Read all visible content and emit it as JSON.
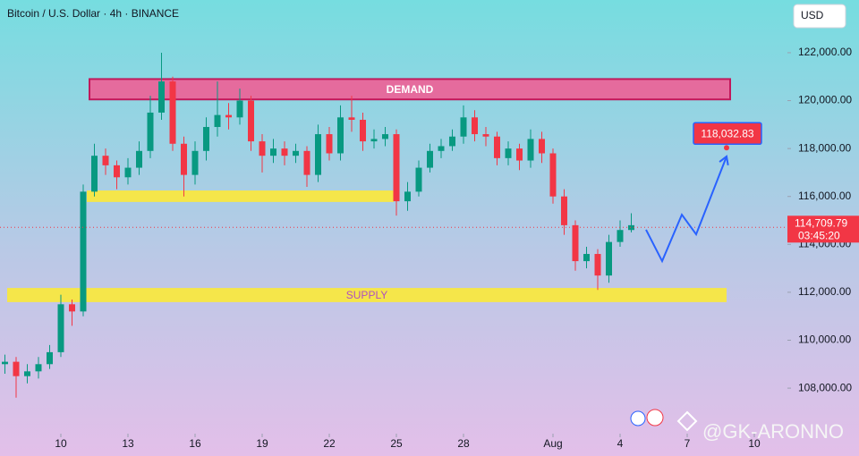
{
  "chart_data": {
    "type": "candlestick",
    "title": "Bitcoin / U.S. Dollar · 4h · BINANCE",
    "currency": "USD",
    "x": [
      7.5,
      8,
      8.5,
      9,
      9.5,
      10,
      10.5,
      11,
      11.5,
      12,
      12.5,
      13,
      13.5,
      14,
      14.5,
      15,
      15.5,
      16,
      16.5,
      17,
      17.5,
      18,
      18.5,
      19,
      19.5,
      20,
      20.5,
      21,
      21.5,
      22,
      22.5,
      23,
      23.5,
      24,
      24.5,
      25,
      25.5,
      26,
      26.5,
      27,
      27.5,
      28,
      28.5,
      29,
      29.5,
      30,
      30.5,
      31,
      31.5,
      32,
      32.5,
      33,
      33.5,
      34,
      34.5,
      35,
      35.5
    ],
    "open": [
      109000,
      109100,
      108500,
      108700,
      109000,
      109500,
      111500,
      111200,
      116200,
      117700,
      117300,
      116800,
      117200,
      117900,
      119500,
      120800,
      118200,
      116900,
      117900,
      118900,
      119400,
      119300,
      120000,
      118300,
      117700,
      118000,
      117700,
      117900,
      116900,
      118600,
      117800,
      119300,
      119200,
      118300,
      118400,
      118600,
      115800,
      116200,
      117200,
      117900,
      118100,
      118500,
      119300,
      118600,
      118500,
      117600,
      118000,
      117500,
      118400,
      117800,
      116000,
      114800,
      113300,
      113600,
      112700,
      114100,
      114600
    ],
    "high": [
      109400,
      109300,
      109000,
      109300,
      109800,
      111900,
      111700,
      116500,
      118200,
      118000,
      117500,
      117600,
      118300,
      120200,
      122000,
      121000,
      118500,
      118300,
      119300,
      120800,
      119900,
      120500,
      120200,
      118600,
      118400,
      118300,
      118200,
      118100,
      119000,
      118900,
      119800,
      120200,
      119500,
      118800,
      118900,
      118800,
      116600,
      117500,
      118200,
      118400,
      118800,
      119800,
      119600,
      118900,
      118700,
      118300,
      118200,
      118800,
      118700,
      118000,
      116300,
      115000,
      113900,
      113800,
      114400,
      115000,
      115300
    ],
    "low": [
      108600,
      107600,
      108200,
      108400,
      108800,
      109300,
      110600,
      111000,
      116000,
      116900,
      116300,
      116500,
      116900,
      117600,
      119200,
      117900,
      116000,
      116500,
      117500,
      118500,
      118800,
      119000,
      117900,
      117000,
      117400,
      117300,
      117400,
      116400,
      116600,
      117500,
      117500,
      118700,
      117900,
      118000,
      118100,
      115200,
      115400,
      116000,
      117000,
      117600,
      117900,
      118200,
      118300,
      118100,
      117300,
      117300,
      117100,
      117200,
      117400,
      115700,
      114400,
      112900,
      113000,
      112100,
      112400,
      113900,
      114500
    ],
    "close": [
      109100,
      108500,
      108700,
      109000,
      109500,
      111500,
      111200,
      116200,
      117700,
      117300,
      116800,
      117200,
      117900,
      119500,
      120800,
      118200,
      116900,
      117900,
      118900,
      119400,
      119300,
      120000,
      118300,
      117700,
      118000,
      117700,
      117900,
      116900,
      118600,
      117800,
      119300,
      119200,
      118300,
      118400,
      118600,
      115800,
      116200,
      117200,
      117900,
      118100,
      118500,
      119300,
      118600,
      118500,
      117600,
      118000,
      117500,
      118400,
      117800,
      116000,
      114800,
      113300,
      113600,
      112700,
      114100,
      114600,
      114800
    ],
    "up_color": "#089981",
    "down_color": "#f23645",
    "xlim": [
      7.28,
      42.48
    ],
    "ylim": [
      106100,
      124200
    ],
    "xticks": [
      10,
      13,
      16,
      19,
      22,
      25,
      28,
      {
        "value": 32,
        "label": "Aug"
      },
      {
        "value": 35,
        "label": "4"
      },
      {
        "value": 38,
        "label": "7"
      },
      {
        "value": 41,
        "label": "10"
      }
    ],
    "yticks": [
      {
        "value": 108000,
        "label": "108,000.00"
      },
      {
        "value": 110000,
        "label": "110,000.00"
      },
      {
        "value": 112000,
        "label": "112,000.00"
      },
      {
        "value": 114000,
        "label": "114,000.00"
      },
      {
        "value": 116000,
        "label": "116,000.00"
      },
      {
        "value": 118000,
        "label": "118,000.00"
      },
      {
        "value": 120000,
        "label": "120,000.00"
      },
      {
        "value": 122000,
        "label": "122,000.00"
      }
    ],
    "zones": [
      {
        "label": "DEMAND",
        "x": [
          11.28,
          39.92
        ],
        "y": [
          120050,
          120900
        ],
        "color": "#e56b9d",
        "text_color": "#ffffff"
      },
      {
        "x": [
          11.16,
          24.88
        ],
        "y": [
          115770,
          116250
        ],
        "color": "#f5e64a"
      },
      {
        "label": "SUPPLY",
        "x": [
          7.6,
          39.76
        ],
        "y": [
          111590,
          112180
        ],
        "color": "#f5e64a",
        "text_color": "#b04fc0"
      }
    ],
    "projection": {
      "x": [
        36.16,
        36.88,
        37.76,
        38.4,
        39.76
      ],
      "y": [
        114610,
        113300,
        115240,
        114420,
        117670
      ],
      "color": "#2962ff"
    },
    "target": {
      "x": 39.76,
      "value": 118032.83,
      "label": "118,032.83"
    },
    "last_price": {
      "value": 114709.79,
      "label": "114,709.79",
      "countdown": "03:45:20"
    },
    "watermark": "@GK-ARONNO"
  }
}
